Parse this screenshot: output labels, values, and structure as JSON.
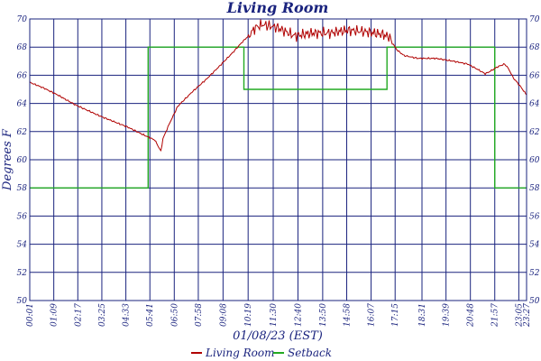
{
  "chart_data": {
    "type": "line",
    "title": "Living Room",
    "xlabel": "01/08/23 (EST)",
    "ylabel": "Degrees F",
    "ylim": [
      50,
      70
    ],
    "yticks": [
      50,
      52,
      54,
      56,
      58,
      60,
      62,
      64,
      66,
      68,
      70
    ],
    "xlim": [
      1,
      1407
    ],
    "xtick_labels": [
      "00:01",
      "01:09",
      "02:17",
      "03:25",
      "04:33",
      "05:41",
      "06:50",
      "07:58",
      "09:08",
      "10:19",
      "11:30",
      "12:40",
      "13:50",
      "14:58",
      "16:07",
      "17:15",
      "18:31",
      "19:39",
      "20:48",
      "21:57",
      "23:05",
      "23:27"
    ],
    "grid": true,
    "legend_position": "bottom-center",
    "series": [
      {
        "name": "Living Room",
        "color": "#b00000",
        "points": [
          [
            1,
            65.5
          ],
          [
            40,
            65.1
          ],
          [
            80,
            64.6
          ],
          [
            130,
            63.9
          ],
          [
            200,
            63.1
          ],
          [
            280,
            62.3
          ],
          [
            320,
            61.8
          ],
          [
            355,
            61.4
          ],
          [
            372,
            60.6
          ],
          [
            378,
            61.5
          ],
          [
            395,
            62.5
          ],
          [
            420,
            63.8
          ],
          [
            460,
            64.8
          ],
          [
            500,
            65.7
          ],
          [
            540,
            66.7
          ],
          [
            575,
            67.6
          ],
          [
            600,
            68.3
          ],
          [
            620,
            68.8
          ],
          [
            640,
            69.4
          ],
          [
            660,
            69.6
          ],
          [
            700,
            69.4
          ],
          [
            750,
            68.8
          ],
          [
            800,
            69.0
          ],
          [
            850,
            69.0
          ],
          [
            900,
            69.2
          ],
          [
            950,
            69.1
          ],
          [
            1000,
            68.9
          ],
          [
            1020,
            68.7
          ],
          [
            1030,
            68.2
          ],
          [
            1040,
            67.8
          ],
          [
            1060,
            67.4
          ],
          [
            1100,
            67.2
          ],
          [
            1150,
            67.2
          ],
          [
            1200,
            67.0
          ],
          [
            1240,
            66.8
          ],
          [
            1270,
            66.4
          ],
          [
            1290,
            66.1
          ],
          [
            1305,
            66.3
          ],
          [
            1325,
            66.6
          ],
          [
            1345,
            66.8
          ],
          [
            1355,
            66.5
          ],
          [
            1370,
            65.8
          ],
          [
            1390,
            65.2
          ],
          [
            1407,
            64.6
          ]
        ]
      },
      {
        "name": "Setback",
        "color": "#22aa22",
        "points": [
          [
            1,
            58
          ],
          [
            336,
            58
          ],
          [
            336,
            68
          ],
          [
            607,
            68
          ],
          [
            607,
            65
          ],
          [
            1012,
            65
          ],
          [
            1012,
            68
          ],
          [
            1317,
            68
          ],
          [
            1317,
            58
          ],
          [
            1407,
            58
          ]
        ]
      }
    ]
  }
}
